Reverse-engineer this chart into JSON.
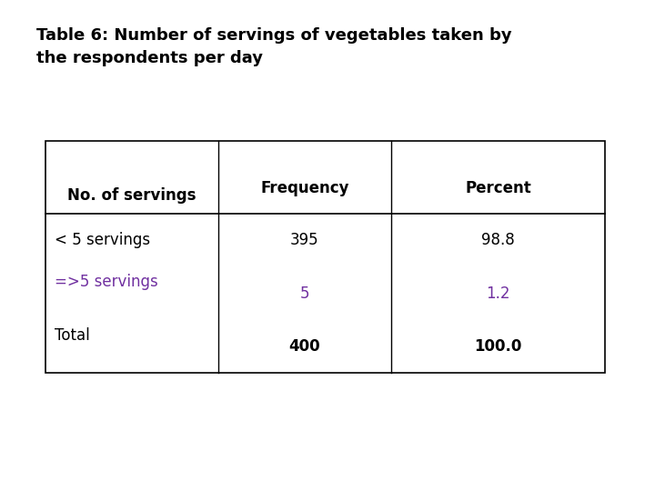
{
  "title": "Table 6: Number of servings of vegetables taken by\nthe respondents per day",
  "title_fontsize": 13,
  "title_color": "#000000",
  "bg_color": "#ffffff",
  "col_headers": [
    "No. of servings",
    "Frequency",
    "Percent"
  ],
  "rows": [
    {
      "label": "< 5 servings",
      "label_color": "#000000",
      "freq": "395",
      "freq_color": "#000000",
      "freq_bold": false,
      "pct": "98.8",
      "pct_color": "#000000",
      "pct_bold": false
    },
    {
      "label": "=>5 servings",
      "label_color": "#7030a0",
      "freq": "5",
      "freq_color": "#7030a0",
      "freq_bold": false,
      "pct": "1.2",
      "pct_color": "#7030a0",
      "pct_bold": false
    },
    {
      "label": "Total",
      "label_color": "#000000",
      "freq": "400",
      "freq_color": "#000000",
      "freq_bold": true,
      "pct": "100.0",
      "pct_color": "#000000",
      "pct_bold": true
    }
  ],
  "header_fontsize": 12,
  "data_fontsize": 12,
  "purple_color": "#7030a0"
}
